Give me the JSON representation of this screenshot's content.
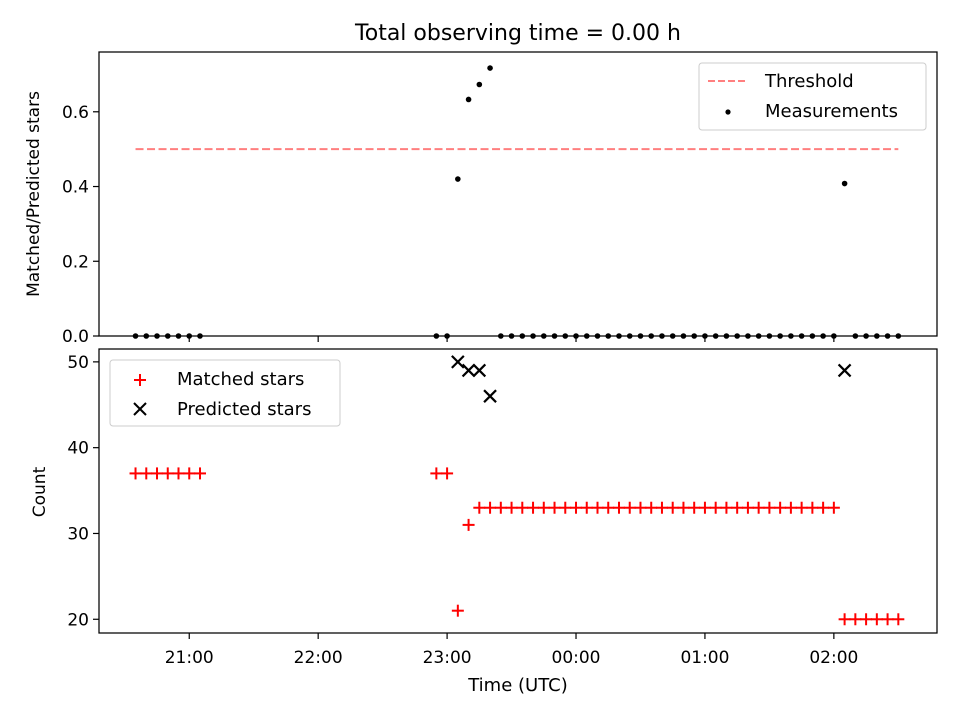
{
  "chart_data": [
    {
      "type": "scatter",
      "title": "Total observing time = 0.00 h",
      "xlabel": "",
      "ylabel": "Matched/Predicted stars",
      "ylim": [
        0,
        0.76
      ],
      "y_ticks": [
        0.0,
        0.2,
        0.4,
        0.6
      ],
      "y_tick_labels": [
        "0.0",
        "0.2",
        "0.4",
        "0.6"
      ],
      "x_ticks": [
        "21:00",
        "22:00",
        "23:00",
        "00:00",
        "01:00",
        "02:00"
      ],
      "legend_position": "top-right",
      "grid": false,
      "series": [
        {
          "name": "Threshold",
          "kind": "dashed-line",
          "color": "#ff7f7f",
          "x": [
            "20:35",
            "02:30"
          ],
          "y": [
            0.5,
            0.5
          ]
        },
        {
          "name": "Measurements",
          "kind": "points",
          "color": "#000000",
          "x": [
            "20:35",
            "20:40",
            "20:45",
            "20:50",
            "20:55",
            "21:00",
            "21:05",
            "22:55",
            "23:00",
            "23:05",
            "23:10",
            "23:15",
            "23:20",
            "23:25",
            "23:30",
            "23:35",
            "23:40",
            "23:45",
            "23:50",
            "23:55",
            "00:00",
            "00:05",
            "00:10",
            "00:15",
            "00:20",
            "00:25",
            "00:30",
            "00:35",
            "00:40",
            "00:45",
            "00:50",
            "00:55",
            "01:00",
            "01:05",
            "01:10",
            "01:15",
            "01:20",
            "01:25",
            "01:30",
            "01:35",
            "01:40",
            "01:45",
            "01:50",
            "01:55",
            "02:00",
            "02:05",
            "02:10",
            "02:15",
            "02:20",
            "02:25",
            "02:30"
          ],
          "y": [
            0,
            0,
            0,
            0,
            0,
            0,
            0,
            0,
            0,
            0.42,
            0.633,
            0.673,
            0.717,
            0,
            0,
            0,
            0,
            0,
            0,
            0,
            0,
            0,
            0,
            0,
            0,
            0,
            0,
            0,
            0,
            0,
            0,
            0,
            0,
            0,
            0,
            0,
            0,
            0,
            0,
            0,
            0,
            0,
            0,
            0,
            0,
            0.408,
            0,
            0,
            0,
            0,
            0
          ]
        }
      ]
    },
    {
      "type": "scatter",
      "title": "",
      "xlabel": "Time (UTC)",
      "ylabel": "Count",
      "ylim": [
        18.4,
        51.5
      ],
      "y_ticks": [
        20,
        30,
        40,
        50
      ],
      "y_tick_labels": [
        "20",
        "30",
        "40",
        "50"
      ],
      "x_ticks": [
        "21:00",
        "22:00",
        "23:00",
        "00:00",
        "01:00",
        "02:00"
      ],
      "x_tick_labels": [
        "21:00",
        "22:00",
        "23:00",
        "00:00",
        "01:00",
        "02:00"
      ],
      "legend_position": "top-left",
      "grid": false,
      "series": [
        {
          "name": "Matched stars",
          "marker": "plus",
          "color": "#ff0000",
          "x": [
            "20:35",
            "20:40",
            "20:45",
            "20:50",
            "20:55",
            "21:00",
            "21:05",
            "22:55",
            "23:00",
            "23:05",
            "23:10",
            "23:15",
            "23:20",
            "23:25",
            "23:30",
            "23:35",
            "23:40",
            "23:45",
            "23:50",
            "23:55",
            "00:00",
            "00:05",
            "00:10",
            "00:15",
            "00:20",
            "00:25",
            "00:30",
            "00:35",
            "00:40",
            "00:45",
            "00:50",
            "00:55",
            "01:00",
            "01:05",
            "01:10",
            "01:15",
            "01:20",
            "01:25",
            "01:30",
            "01:35",
            "01:40",
            "01:45",
            "01:50",
            "01:55",
            "02:00",
            "02:05",
            "02:10",
            "02:15",
            "02:20",
            "02:25",
            "02:30"
          ],
          "y": [
            37,
            37,
            37,
            37,
            37,
            37,
            37,
            37,
            37,
            21,
            31,
            33,
            33,
            33,
            33,
            33,
            33,
            33,
            33,
            33,
            33,
            33,
            33,
            33,
            33,
            33,
            33,
            33,
            33,
            33,
            33,
            33,
            33,
            33,
            33,
            33,
            33,
            33,
            33,
            33,
            33,
            33,
            33,
            33,
            33,
            20,
            20,
            20,
            20,
            20,
            20
          ]
        },
        {
          "name": "Predicted stars",
          "marker": "x",
          "color": "#000000",
          "x": [
            "23:05",
            "23:10",
            "23:15",
            "23:20",
            "02:05"
          ],
          "y": [
            50,
            49,
            49,
            46,
            49
          ]
        }
      ]
    }
  ]
}
